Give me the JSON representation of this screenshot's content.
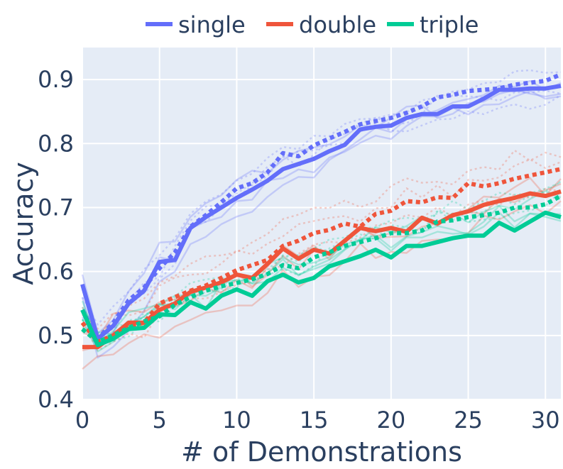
{
  "chart_data": {
    "type": "line",
    "title": "",
    "xlabel": "# of Demonstrations",
    "ylabel": "Accuracy",
    "xlim": [
      0,
      31
    ],
    "ylim": [
      0.4,
      0.95
    ],
    "x_ticks": [
      0,
      5,
      10,
      15,
      20,
      25,
      30
    ],
    "y_ticks": [
      0.4,
      0.5,
      0.6,
      0.7,
      0.8,
      0.9
    ],
    "x_tick_labels": [
      "0",
      "5",
      "10",
      "15",
      "20",
      "25",
      "30"
    ],
    "y_tick_labels": [
      "0.4",
      "0.5",
      "0.6",
      "0.7",
      "0.8",
      "0.9"
    ],
    "grid": true,
    "legend_position": "top",
    "legend": [
      {
        "name": "single",
        "color": "#636efa"
      },
      {
        "name": "double",
        "color": "#ef553b"
      },
      {
        "name": "triple",
        "color": "#00cc96"
      }
    ],
    "x": [
      0,
      1,
      2,
      3,
      4,
      5,
      6,
      7,
      8,
      9,
      10,
      11,
      12,
      13,
      14,
      15,
      16,
      17,
      18,
      19,
      20,
      21,
      22,
      23,
      24,
      25,
      26,
      27,
      28,
      29,
      30,
      31
    ],
    "series": [
      {
        "name": "single",
        "style": "solid",
        "color": "#636efa",
        "values": [
          0.58,
          0.495,
          0.515,
          0.55,
          0.57,
          0.615,
          0.618,
          0.668,
          0.685,
          0.7,
          0.715,
          0.728,
          0.742,
          0.76,
          0.768,
          0.776,
          0.788,
          0.798,
          0.822,
          0.826,
          0.828,
          0.84,
          0.846,
          0.846,
          0.858,
          0.858,
          0.87,
          0.884,
          0.884,
          0.886,
          0.886,
          0.89
        ]
      },
      {
        "name": "single",
        "style": "dotted",
        "color": "#636efa",
        "values": [
          0.54,
          0.495,
          0.52,
          0.555,
          0.575,
          0.605,
          0.63,
          0.67,
          0.688,
          0.708,
          0.73,
          0.738,
          0.755,
          0.785,
          0.78,
          0.797,
          0.808,
          0.818,
          0.83,
          0.835,
          0.84,
          0.848,
          0.858,
          0.872,
          0.876,
          0.882,
          0.884,
          0.886,
          0.892,
          0.895,
          0.898,
          0.908
        ]
      },
      {
        "name": "double",
        "style": "solid",
        "color": "#ef553b",
        "values": [
          0.482,
          0.482,
          0.5,
          0.52,
          0.52,
          0.54,
          0.55,
          0.568,
          0.575,
          0.583,
          0.595,
          0.59,
          0.612,
          0.636,
          0.62,
          0.634,
          0.628,
          0.648,
          0.668,
          0.663,
          0.668,
          0.662,
          0.684,
          0.675,
          0.688,
          0.694,
          0.704,
          0.71,
          0.715,
          0.722,
          0.718,
          0.725
        ]
      },
      {
        "name": "double",
        "style": "dotted",
        "color": "#ef553b",
        "values": [
          0.52,
          0.49,
          0.5,
          0.515,
          0.52,
          0.55,
          0.56,
          0.57,
          0.578,
          0.59,
          0.602,
          0.61,
          0.618,
          0.64,
          0.648,
          0.66,
          0.665,
          0.675,
          0.67,
          0.69,
          0.695,
          0.71,
          0.708,
          0.716,
          0.715,
          0.738,
          0.733,
          0.738,
          0.745,
          0.75,
          0.755,
          0.76
        ]
      },
      {
        "name": "triple",
        "style": "solid",
        "color": "#00cc96",
        "values": [
          0.54,
          0.485,
          0.495,
          0.51,
          0.512,
          0.533,
          0.532,
          0.552,
          0.542,
          0.562,
          0.572,
          0.562,
          0.585,
          0.595,
          0.583,
          0.59,
          0.608,
          0.616,
          0.624,
          0.634,
          0.622,
          0.64,
          0.64,
          0.646,
          0.652,
          0.656,
          0.656,
          0.676,
          0.664,
          0.678,
          0.692,
          0.685
        ]
      },
      {
        "name": "triple",
        "style": "dotted",
        "color": "#00cc96",
        "values": [
          0.51,
          0.49,
          0.5,
          0.512,
          0.522,
          0.53,
          0.548,
          0.56,
          0.57,
          0.577,
          0.582,
          0.588,
          0.596,
          0.61,
          0.605,
          0.622,
          0.63,
          0.64,
          0.646,
          0.652,
          0.66,
          0.66,
          0.664,
          0.678,
          0.68,
          0.685,
          0.688,
          0.692,
          0.7,
          0.7,
          0.705,
          0.718
        ]
      }
    ]
  }
}
